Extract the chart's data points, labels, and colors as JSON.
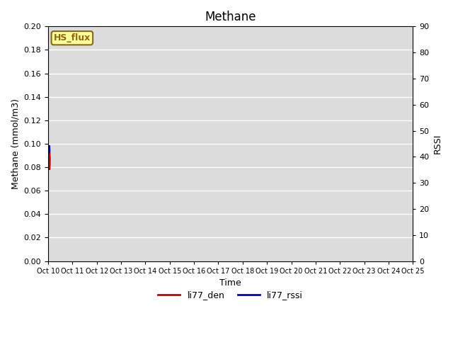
{
  "title": "Methane",
  "xlabel": "Time",
  "ylabel_left": "Methane (mmol/m3)",
  "ylabel_right": "RSSI",
  "ylim_left": [
    0.0,
    0.2
  ],
  "ylim_right": [
    0,
    90
  ],
  "yticks_left": [
    0.0,
    0.02,
    0.04,
    0.06,
    0.08,
    0.1,
    0.12,
    0.14,
    0.16,
    0.18,
    0.2
  ],
  "yticks_right": [
    0,
    10,
    20,
    30,
    40,
    50,
    60,
    70,
    80,
    90
  ],
  "xtick_labels": [
    "Oct 10",
    "Oct 11",
    "Oct 12",
    "Oct 13",
    "Oct 14",
    "Oct 15",
    "Oct 16",
    "Oct 17",
    "Oct 18",
    "Oct 19",
    "Oct 20",
    "Oct 21",
    "Oct 22",
    "Oct 23",
    "Oct 24",
    "Oct 25"
  ],
  "color_red": "#CC0000",
  "color_blue": "#0000CC",
  "legend_label_red": "li77_den",
  "legend_label_blue": "li77_rssi",
  "annotation_text": "HS_flux",
  "annotation_color": "#8B6914",
  "annotation_bg": "#FFFF99",
  "background_color": "#DCDCDC",
  "grid_color": "#FFFFFF",
  "title_fontsize": 12,
  "n_days": 15,
  "n_per_day": 200
}
